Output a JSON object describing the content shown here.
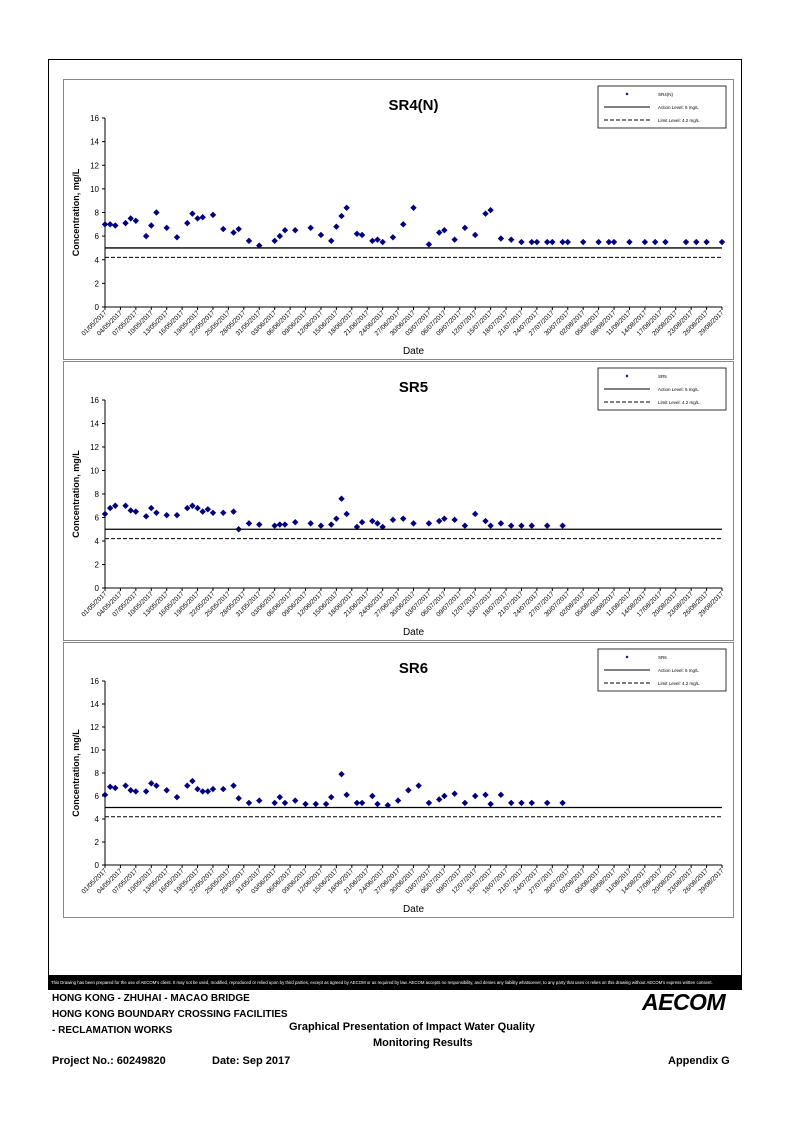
{
  "chart_data": [
    {
      "type": "scatter",
      "title": "SR4(N)",
      "xlabel": "Date",
      "ylabel": "Concentration, mg/L",
      "ylim": [
        0,
        16
      ],
      "yticks": [
        0,
        2,
        4,
        6,
        8,
        10,
        12,
        14,
        16
      ],
      "x_tick_labels": [
        "01/05/2017",
        "04/05/2017",
        "07/05/2017",
        "10/05/2017",
        "13/05/2017",
        "16/05/2017",
        "19/05/2017",
        "22/05/2017",
        "25/05/2017",
        "28/05/2017",
        "31/05/2017",
        "03/06/2017",
        "06/06/2017",
        "09/06/2017",
        "12/06/2017",
        "15/06/2017",
        "18/06/2017",
        "21/06/2017",
        "24/06/2017",
        "27/06/2017",
        "30/06/2017",
        "03/07/2017",
        "06/07/2017",
        "09/07/2017",
        "12/07/2017",
        "15/07/2017",
        "18/07/2017",
        "21/07/2017",
        "24/07/2017",
        "27/07/2017",
        "30/07/2017",
        "02/08/2017",
        "05/08/2017",
        "08/08/2017",
        "11/08/2017",
        "14/08/2017",
        "17/08/2017",
        "20/08/2017",
        "23/08/2017",
        "26/08/2017",
        "29/08/2017"
      ],
      "series": [
        {
          "name": "SR4(N)",
          "marker": "diamond",
          "color": "#000080",
          "x": [
            "01/05/2017",
            "02/05/2017",
            "03/05/2017",
            "05/05/2017",
            "06/05/2017",
            "07/05/2017",
            "09/05/2017",
            "10/05/2017",
            "11/05/2017",
            "13/05/2017",
            "15/05/2017",
            "17/05/2017",
            "18/05/2017",
            "19/05/2017",
            "20/05/2017",
            "22/05/2017",
            "24/05/2017",
            "26/05/2017",
            "27/05/2017",
            "29/05/2017",
            "31/05/2017",
            "03/06/2017",
            "04/06/2017",
            "05/06/2017",
            "07/06/2017",
            "10/06/2017",
            "12/06/2017",
            "14/06/2017",
            "15/06/2017",
            "16/06/2017",
            "17/06/2017",
            "19/06/2017",
            "20/06/2017",
            "22/06/2017",
            "23/06/2017",
            "24/06/2017",
            "26/06/2017",
            "28/06/2017",
            "30/06/2017",
            "03/07/2017",
            "05/07/2017",
            "06/07/2017",
            "08/07/2017",
            "10/07/2017",
            "12/07/2017",
            "14/07/2017",
            "15/07/2017",
            "17/07/2017",
            "19/07/2017",
            "21/07/2017",
            "23/07/2017",
            "24/07/2017",
            "26/07/2017",
            "27/07/2017",
            "29/07/2017",
            "30/07/2017",
            "02/08/2017",
            "05/08/2017",
            "07/08/2017",
            "08/08/2017",
            "11/08/2017",
            "14/08/2017",
            "16/08/2017",
            "18/08/2017",
            "22/08/2017",
            "24/08/2017",
            "26/08/2017",
            "29/08/2017"
          ],
          "y": [
            7.0,
            7.0,
            6.9,
            7.1,
            7.5,
            7.3,
            6.0,
            6.9,
            8.0,
            6.7,
            5.9,
            7.1,
            7.9,
            7.5,
            7.6,
            7.8,
            6.6,
            6.3,
            6.6,
            5.6,
            5.2,
            5.6,
            6.0,
            6.5,
            6.5,
            6.7,
            6.1,
            5.6,
            6.8,
            7.7,
            8.4,
            6.2,
            6.1,
            5.6,
            5.7,
            5.5,
            5.9,
            7.0,
            8.4,
            5.3,
            6.3,
            6.5,
            5.7,
            6.7,
            6.1,
            7.9,
            8.2,
            5.8,
            5.7,
            5.5,
            5.5,
            5.5,
            5.5,
            5.5,
            5.5,
            5.5,
            5.5,
            5.5,
            5.5,
            5.5,
            5.5,
            5.5,
            5.5,
            5.5,
            5.5,
            5.5,
            5.5,
            5.5
          ]
        },
        {
          "name": "Action Level: 5 mg/L",
          "type": "hline",
          "value": 5,
          "style": "solid"
        },
        {
          "name": "Limit Level: 4.2 mg/L",
          "type": "hline",
          "value": 4.2,
          "style": "dashed"
        }
      ],
      "legend": "top-right"
    },
    {
      "type": "scatter",
      "title": "SR5",
      "xlabel": "Date",
      "ylabel": "Concentration, mg/L",
      "ylim": [
        0,
        16
      ],
      "yticks": [
        0,
        2,
        4,
        6,
        8,
        10,
        12,
        14,
        16
      ],
      "x_tick_labels": [
        "01/05/2017",
        "04/05/2017",
        "07/05/2017",
        "10/05/2017",
        "13/05/2017",
        "16/05/2017",
        "19/05/2017",
        "22/05/2017",
        "25/05/2017",
        "28/05/2017",
        "31/05/2017",
        "03/06/2017",
        "06/06/2017",
        "09/06/2017",
        "12/06/2017",
        "15/06/2017",
        "18/06/2017",
        "21/06/2017",
        "24/06/2017",
        "27/06/2017",
        "30/06/2017",
        "03/07/2017",
        "06/07/2017",
        "09/07/2017",
        "12/07/2017",
        "15/07/2017",
        "18/07/2017",
        "21/07/2017",
        "24/07/2017",
        "27/07/2017",
        "30/07/2017",
        "02/08/2017",
        "05/08/2017",
        "08/08/2017",
        "11/08/2017",
        "14/08/2017",
        "17/08/2017",
        "20/08/2017",
        "23/08/2017",
        "26/08/2017",
        "29/08/2017"
      ],
      "series": [
        {
          "name": "SR5",
          "marker": "diamond",
          "color": "#000080",
          "x": [
            "01/05/2017",
            "02/05/2017",
            "03/05/2017",
            "05/05/2017",
            "06/05/2017",
            "07/05/2017",
            "09/05/2017",
            "10/05/2017",
            "11/05/2017",
            "13/05/2017",
            "15/05/2017",
            "17/05/2017",
            "18/05/2017",
            "19/05/2017",
            "20/05/2017",
            "21/05/2017",
            "22/05/2017",
            "24/05/2017",
            "26/05/2017",
            "27/05/2017",
            "29/05/2017",
            "31/05/2017",
            "03/06/2017",
            "04/06/2017",
            "05/06/2017",
            "07/06/2017",
            "10/06/2017",
            "12/06/2017",
            "14/06/2017",
            "15/06/2017",
            "16/06/2017",
            "17/06/2017",
            "19/06/2017",
            "20/06/2017",
            "22/06/2017",
            "23/06/2017",
            "24/06/2017",
            "26/06/2017",
            "28/06/2017",
            "30/06/2017",
            "03/07/2017",
            "05/07/2017",
            "06/07/2017",
            "08/07/2017",
            "10/07/2017",
            "12/07/2017",
            "14/07/2017",
            "15/07/2017",
            "17/07/2017",
            "19/07/2017",
            "21/07/2017",
            "23/07/2017",
            "26/07/2017",
            "29/07/2017"
          ],
          "y": [
            6.3,
            6.8,
            7.0,
            7.0,
            6.6,
            6.5,
            6.1,
            6.8,
            6.4,
            6.2,
            6.2,
            6.8,
            7.0,
            6.8,
            6.5,
            6.7,
            6.4,
            6.4,
            6.5,
            5.0,
            5.5,
            5.4,
            5.3,
            5.4,
            5.4,
            5.6,
            5.5,
            5.3,
            5.4,
            5.9,
            7.6,
            6.3,
            5.2,
            5.6,
            5.7,
            5.5,
            5.2,
            5.8,
            5.9,
            5.5,
            5.5,
            5.7,
            5.9,
            5.8,
            5.3,
            6.3,
            5.7,
            5.3,
            5.5,
            5.3,
            5.3,
            5.3,
            5.3,
            5.3
          ]
        },
        {
          "name": "Action Level: 5 mg/L",
          "type": "hline",
          "value": 5,
          "style": "solid"
        },
        {
          "name": "Limit Level: 4.2 mg/L",
          "type": "hline",
          "value": 4.2,
          "style": "dashed"
        }
      ],
      "legend": "top-right"
    },
    {
      "type": "scatter",
      "title": "SR6",
      "xlabel": "Date",
      "ylabel": "Concentration, mg/L",
      "ylim": [
        0,
        16
      ],
      "yticks": [
        0,
        2,
        4,
        6,
        8,
        10,
        12,
        14,
        16
      ],
      "x_tick_labels": [
        "01/05/2017",
        "04/05/2017",
        "07/05/2017",
        "10/05/2017",
        "13/05/2017",
        "16/05/2017",
        "19/05/2017",
        "22/05/2017",
        "25/05/2017",
        "28/05/2017",
        "31/05/2017",
        "03/06/2017",
        "06/06/2017",
        "09/06/2017",
        "12/06/2017",
        "15/06/2017",
        "18/06/2017",
        "21/06/2017",
        "24/06/2017",
        "27/06/2017",
        "30/06/2017",
        "03/07/2017",
        "06/07/2017",
        "09/07/2017",
        "12/07/2017",
        "15/07/2017",
        "18/07/2017",
        "21/07/2017",
        "24/07/2017",
        "27/07/2017",
        "30/07/2017",
        "02/08/2017",
        "05/08/2017",
        "08/08/2017",
        "11/08/2017",
        "14/08/2017",
        "17/08/2017",
        "20/08/2017",
        "23/08/2017",
        "26/08/2017",
        "29/08/2017"
      ],
      "series": [
        {
          "name": "SR6",
          "marker": "diamond",
          "color": "#000080",
          "x": [
            "01/05/2017",
            "02/05/2017",
            "03/05/2017",
            "05/05/2017",
            "06/05/2017",
            "07/05/2017",
            "09/05/2017",
            "10/05/2017",
            "11/05/2017",
            "13/05/2017",
            "15/05/2017",
            "17/05/2017",
            "18/05/2017",
            "19/05/2017",
            "20/05/2017",
            "21/05/2017",
            "22/05/2017",
            "24/05/2017",
            "26/05/2017",
            "27/05/2017",
            "29/05/2017",
            "31/05/2017",
            "03/06/2017",
            "04/06/2017",
            "05/06/2017",
            "07/06/2017",
            "09/06/2017",
            "11/06/2017",
            "13/06/2017",
            "14/06/2017",
            "16/06/2017",
            "17/06/2017",
            "19/06/2017",
            "20/06/2017",
            "22/06/2017",
            "23/06/2017",
            "25/06/2017",
            "27/06/2017",
            "29/06/2017",
            "01/07/2017",
            "03/07/2017",
            "05/07/2017",
            "06/07/2017",
            "08/07/2017",
            "10/07/2017",
            "12/07/2017",
            "14/07/2017",
            "15/07/2017",
            "17/07/2017",
            "19/07/2017",
            "21/07/2017",
            "23/07/2017",
            "26/07/2017",
            "29/07/2017"
          ],
          "y": [
            6.1,
            6.8,
            6.7,
            6.9,
            6.5,
            6.4,
            6.4,
            7.1,
            6.9,
            6.5,
            5.9,
            6.9,
            7.3,
            6.6,
            6.4,
            6.4,
            6.6,
            6.6,
            6.9,
            5.8,
            5.4,
            5.6,
            5.4,
            5.9,
            5.4,
            5.6,
            5.3,
            5.3,
            5.3,
            5.9,
            7.9,
            6.1,
            5.4,
            5.4,
            6.0,
            5.3,
            5.2,
            5.6,
            6.5,
            6.9,
            5.4,
            5.7,
            6.0,
            6.2,
            5.4,
            6.0,
            6.1,
            5.3,
            6.1,
            5.4,
            5.4,
            5.4,
            5.4,
            5.4
          ]
        },
        {
          "name": "Action Level: 5 mg/L",
          "type": "hline",
          "value": 5,
          "style": "solid"
        },
        {
          "name": "Limit Level: 4.2 mg/L",
          "type": "hline",
          "value": 4.2,
          "style": "dashed"
        }
      ],
      "legend": "top-right"
    }
  ],
  "footer": {
    "disclaimer": "This Drawing has been prepared for the use of AECOM's client. It may not be used, modified, reproduced or relied upon by third parties, except as agreed by AECOM or as required by law. AECOM accepts no responsibility, and denies any liability whatsoever, to any party that uses or relies on this drawing without AECOM's express written consent.",
    "line1": "HONG KONG - ZHUHAI - MACAO BRIDGE",
    "line2": "HONG KONG BOUNDARY CROSSING FACILITIES",
    "line3": "- RECLAMATION WORKS",
    "title_line1": "Graphical Presentation of Impact Water Quality",
    "title_line2": "Monitoring Results",
    "project_no": "Project No.: 60249820",
    "date": "Date: Sep 2017",
    "appendix": "Appendix G",
    "logo": "AECOM"
  }
}
